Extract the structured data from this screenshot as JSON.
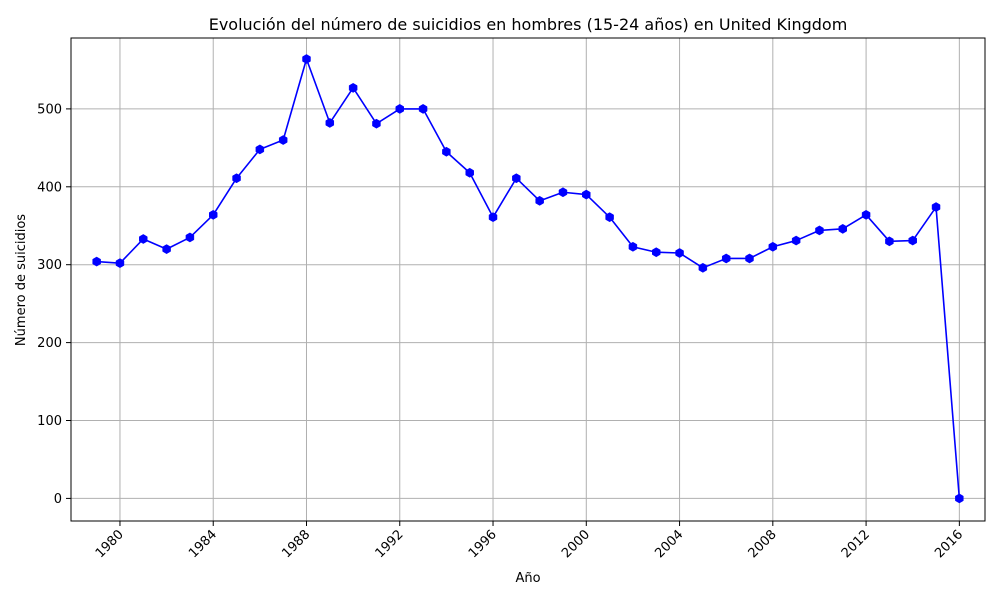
{
  "chart_data": {
    "type": "line",
    "title": "Evolución del número de suicidios en hombres (15-24 años) en United Kingdom",
    "xlabel": "Año",
    "ylabel": "Número de suicidios",
    "xlim": [
      1977.9,
      2017.1
    ],
    "ylim": [
      -29,
      591
    ],
    "xticks": [
      1980,
      1984,
      1988,
      1992,
      1996,
      2000,
      2004,
      2008,
      2012,
      2016
    ],
    "yticks": [
      0,
      100,
      200,
      300,
      400,
      500
    ],
    "grid": true,
    "line_color": "#0000ff",
    "marker": "hexagon",
    "x": [
      1979,
      1980,
      1981,
      1982,
      1983,
      1984,
      1985,
      1986,
      1987,
      1988,
      1989,
      1990,
      1991,
      1992,
      1993,
      1994,
      1995,
      1996,
      1997,
      1998,
      1999,
      2000,
      2001,
      2002,
      2003,
      2004,
      2005,
      2006,
      2007,
      2008,
      2009,
      2010,
      2011,
      2012,
      2013,
      2014,
      2015,
      2016
    ],
    "y": [
      304,
      302,
      333,
      320,
      335,
      364,
      411,
      448,
      460,
      564,
      482,
      527,
      481,
      500,
      500,
      445,
      418,
      361,
      411,
      382,
      393,
      390,
      361,
      323,
      316,
      315,
      296,
      308,
      308,
      323,
      331,
      344,
      346,
      364,
      330,
      331,
      374,
      0
    ]
  }
}
